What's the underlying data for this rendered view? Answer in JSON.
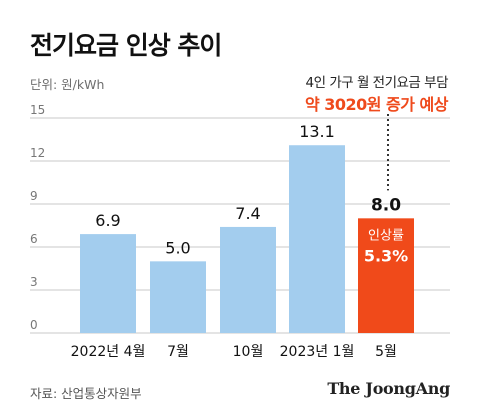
{
  "title": "전기요금 인상 추이",
  "unit_label": "단위: 원/kWh",
  "annotation": {
    "line1": "4인 가구 월 전기요금 부담",
    "line2": "약 3020원 증가 예상"
  },
  "source": "자료: 산업통상자원부",
  "brand": "The JoongAng",
  "colors": {
    "bar": "#a3cdee",
    "highlight": "#f04a1a",
    "grid": "#c9c9c9",
    "axis_text": "#777777"
  },
  "chart_data": {
    "type": "bar",
    "categories": [
      "2022년 4월",
      "7월",
      "10월",
      "2023년 1월",
      "5월"
    ],
    "values": [
      6.9,
      5.0,
      7.4,
      13.1,
      8.0
    ],
    "value_labels": [
      "6.9",
      "5.0",
      "7.4",
      "13.1",
      "8.0"
    ],
    "highlight_index": 4,
    "highlight_inner_label": [
      "인상률",
      "5.3%"
    ],
    "yticks": [
      "0",
      "3",
      "6",
      "9",
      "12",
      "15"
    ],
    "ylim": [
      0,
      15
    ],
    "grid": true
  }
}
